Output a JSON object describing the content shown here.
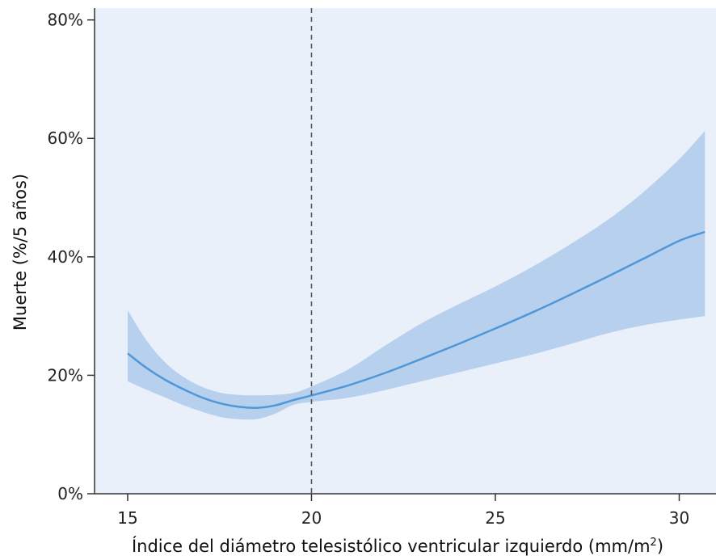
{
  "chart_data": {
    "type": "area",
    "xlabel": "Índice del diámetro telesistólico ventricular izquierdo (mm/m",
    "xlabel_superscript": "2",
    "xlabel_suffix": ")",
    "ylabel": "Muerte (%/5 años)",
    "xlim": [
      14.1,
      31.0
    ],
    "ylim": [
      0,
      82
    ],
    "x_ticks": [
      15,
      20,
      25,
      30
    ],
    "x_tick_labels": [
      "15",
      "20",
      "25",
      "30"
    ],
    "y_ticks": [
      0,
      20,
      40,
      60,
      80
    ],
    "y_tick_labels": [
      "0%",
      "20%",
      "40%",
      "60%",
      "80%"
    ],
    "reference_line_x": 20,
    "grid": false,
    "series": [
      {
        "x": [
          15,
          15.5,
          16,
          16.5,
          17,
          17.5,
          18,
          18.5,
          19,
          19.5,
          20,
          21,
          22,
          23,
          24,
          25,
          26,
          27,
          28,
          29,
          30,
          30.7
        ],
        "y": [
          23.7,
          21.3,
          19.3,
          17.7,
          16.3,
          15.3,
          14.7,
          14.5,
          14.9,
          15.8,
          16.6,
          18.3,
          20.4,
          22.8,
          25.3,
          27.9,
          30.6,
          33.5,
          36.5,
          39.6,
          42.7,
          44.2
        ],
        "lower": [
          19.0,
          17.6,
          16.3,
          15.0,
          13.9,
          13.0,
          12.6,
          12.6,
          13.5,
          15.0,
          15.5,
          16.2,
          17.5,
          19.0,
          20.5,
          22.0,
          23.5,
          25.2,
          27.0,
          28.4,
          29.4,
          30.0
        ],
        "upper": [
          31.0,
          26.0,
          22.3,
          19.8,
          18.1,
          17.1,
          16.7,
          16.6,
          16.7,
          17.0,
          18.1,
          21.0,
          25.0,
          28.8,
          32.0,
          35.0,
          38.3,
          42.0,
          46.0,
          50.8,
          56.5,
          61.3
        ]
      }
    ],
    "colors": {
      "plot_background": "#eaf0fa",
      "band": "#b7d0ee",
      "line": "#4f97d8",
      "reference_line": "#555555",
      "axis": "#333333"
    }
  }
}
